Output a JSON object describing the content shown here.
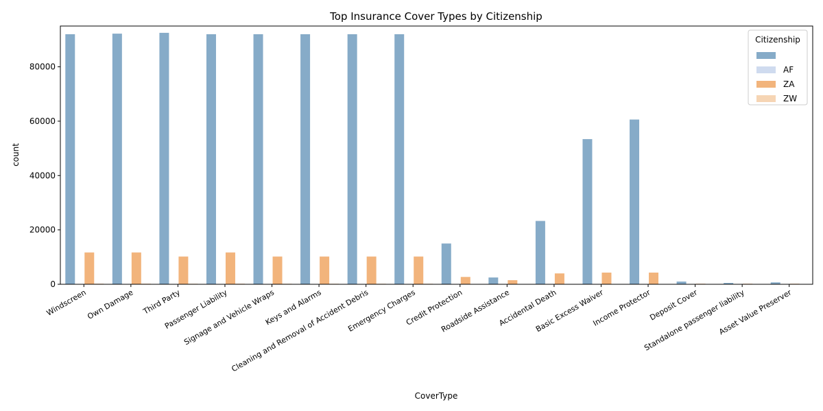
{
  "chart_data": {
    "type": "bar",
    "title": "Top Insurance Cover Types by Citizenship",
    "xlabel": "CoverType",
    "ylabel": "count",
    "ylim": [
      0,
      95000
    ],
    "yticks": [
      0,
      20000,
      40000,
      60000,
      80000
    ],
    "grid": false,
    "legend": {
      "title": "Citizenship",
      "placement": "top-right"
    },
    "categories": [
      "Windscreen",
      "Own Damage",
      "Third Party",
      "Passenger Liability",
      "Signage and Vehicle Wraps",
      "Keys and Alarms",
      "Cleaning and Removal of Accident Debris",
      "Emergency Charges",
      "Credit Protection",
      "Roadside Assistance",
      "Accidental Death",
      "Basic Excess Waiver",
      "Income Protector",
      "Deposit Cover",
      "Standalone passenger liability",
      "Asset Value Preserver"
    ],
    "series": [
      {
        "name": "",
        "color": "#86abc8",
        "values": [
          92000,
          92200,
          92500,
          92000,
          92000,
          92000,
          92000,
          92000,
          15000,
          2500,
          23300,
          53400,
          60600,
          1000,
          500,
          700
        ]
      },
      {
        "name": "AF",
        "color": "#cfdbef",
        "values": [
          20,
          20,
          20,
          20,
          20,
          20,
          20,
          20,
          5,
          2,
          10,
          15,
          15,
          1,
          1,
          1
        ]
      },
      {
        "name": "ZA",
        "color": "#f2b47c",
        "values": [
          11700,
          11700,
          10200,
          11700,
          10200,
          10200,
          10200,
          10200,
          2700,
          1500,
          4000,
          4300,
          4300,
          200,
          200,
          200
        ]
      },
      {
        "name": "ZW",
        "color": "#f6d5b4",
        "values": [
          250,
          250,
          220,
          250,
          220,
          220,
          220,
          220,
          60,
          30,
          80,
          90,
          90,
          5,
          5,
          5
        ]
      }
    ]
  }
}
